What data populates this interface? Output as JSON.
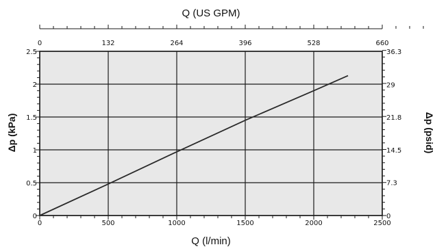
{
  "chart_data": {
    "type": "line",
    "x_bottom": {
      "label": "Q (l/min)",
      "range": [
        0,
        2500
      ],
      "ticks": [
        0,
        500,
        1000,
        1500,
        2000,
        2500
      ],
      "tick_labels": [
        "0",
        "500",
        "1000",
        "1500",
        "2000",
        "2500"
      ]
    },
    "x_top": {
      "label": "Q (US GPM)",
      "range": [
        0,
        660
      ],
      "ticks": [
        0,
        132,
        264,
        396,
        528,
        660
      ],
      "tick_labels": [
        "0",
        "132",
        "264",
        "396",
        "528",
        "660"
      ]
    },
    "y_left": {
      "label": "Δp (kPa)",
      "range": [
        0,
        2.5
      ],
      "ticks": [
        0,
        0.5,
        1,
        1.5,
        2,
        2.5
      ],
      "tick_labels": [
        "0",
        "0.5",
        "1",
        "1.5",
        "2",
        "2.5"
      ]
    },
    "y_right": {
      "label": "Δp (psid)",
      "range": [
        0,
        36.3
      ],
      "ticks": [
        0,
        7.3,
        14.5,
        21.8,
        29,
        36.3
      ],
      "tick_labels": [
        "0",
        "7.3",
        "14.5",
        "21.8",
        "29",
        "36.3"
      ]
    },
    "grid": true,
    "series": [
      {
        "x": [
          0,
          500,
          1000,
          1500,
          2000,
          2250
        ],
        "y": [
          0,
          0.48,
          0.97,
          1.45,
          1.9,
          2.13
        ]
      }
    ],
    "colors": {
      "plot_background": "#e8e8e8",
      "line": "#2a2a2a"
    }
  }
}
